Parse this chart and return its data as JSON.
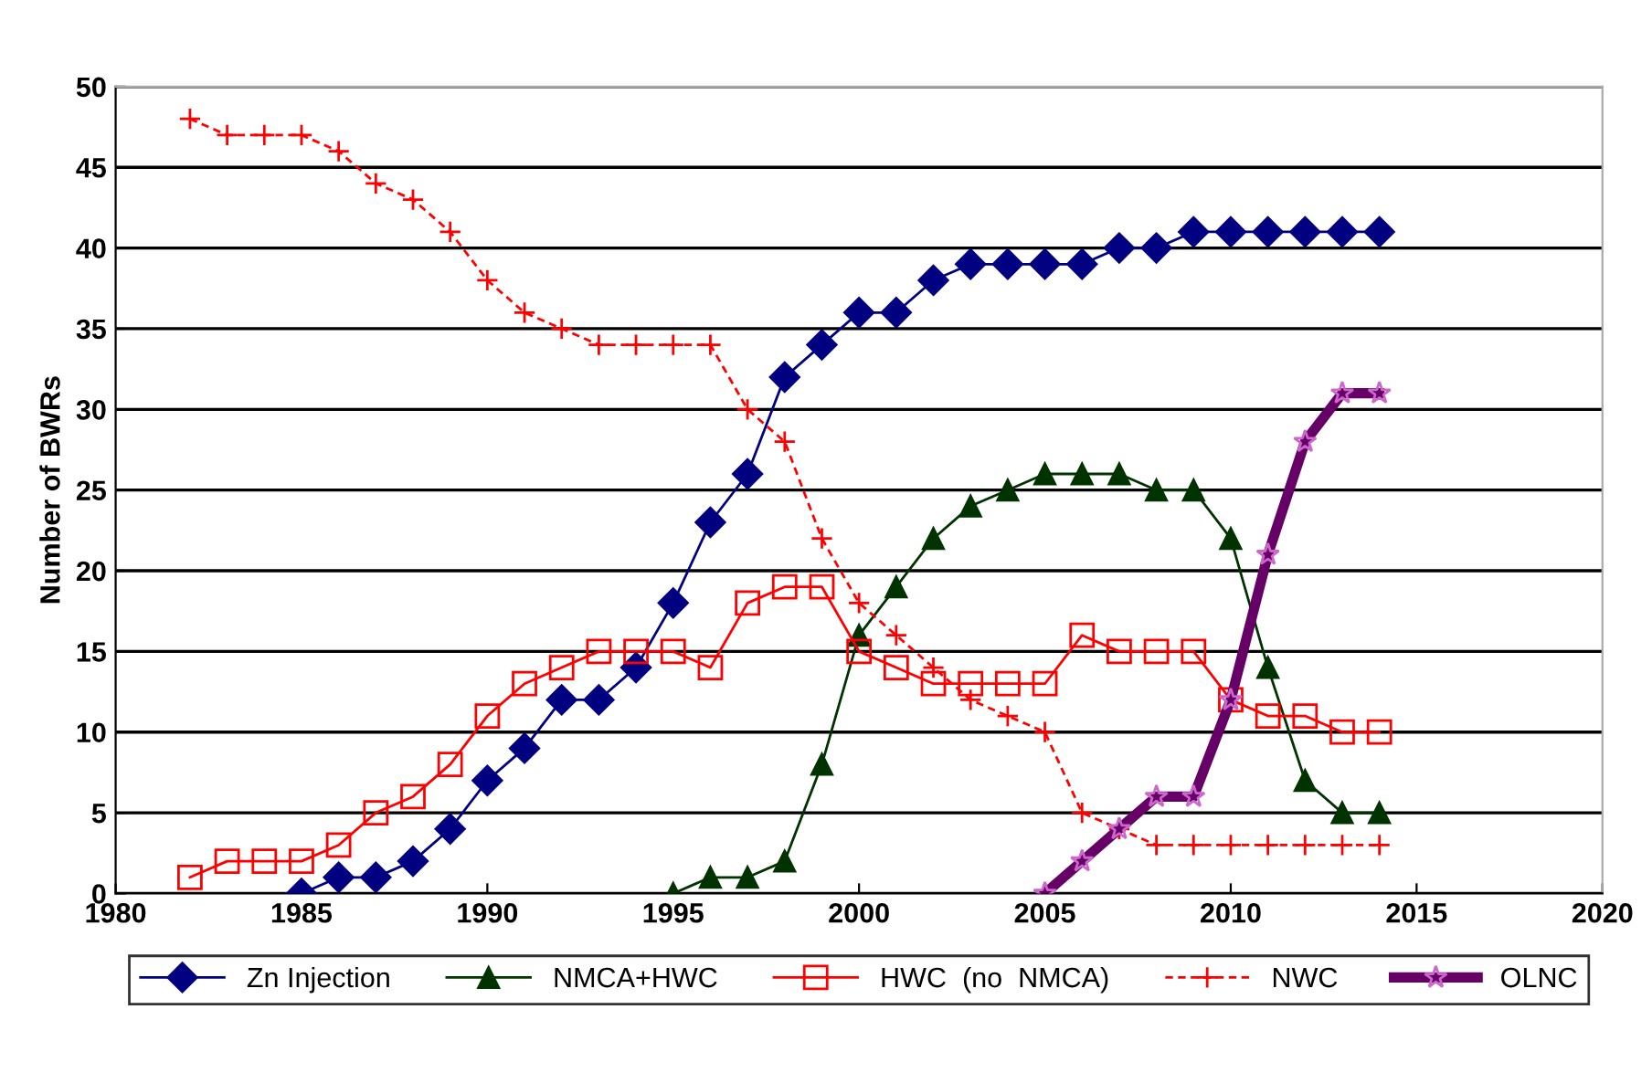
{
  "chart_data": {
    "type": "line",
    "ylabel": "Number of BWRs",
    "xlim": [
      1980,
      2020
    ],
    "xticks": [
      1980,
      1985,
      1990,
      1995,
      2000,
      2005,
      2010,
      2015,
      2020
    ],
    "ylim": [
      0,
      50
    ],
    "yticks": [
      0,
      5,
      10,
      15,
      20,
      25,
      30,
      35,
      40,
      45,
      50
    ],
    "grid": "y",
    "legend": "bottom",
    "series": [
      {
        "name": "Zn Injection",
        "color": "#000080",
        "marker": "diamond",
        "line_style": "solid",
        "x": [
          1985,
          1986,
          1987,
          1988,
          1989,
          1990,
          1991,
          1992,
          1993,
          1994,
          1995,
          1996,
          1997,
          1998,
          1999,
          2000,
          2001,
          2002,
          2003,
          2004,
          2005,
          2006,
          2007,
          2008,
          2009,
          2010,
          2011,
          2012,
          2013,
          2014
        ],
        "values": [
          0,
          1,
          1,
          2,
          4,
          7,
          9,
          12,
          12,
          14,
          18,
          23,
          26,
          32,
          34,
          36,
          36,
          38,
          39,
          39,
          39,
          39,
          40,
          40,
          41,
          41,
          41,
          41,
          41,
          41
        ]
      },
      {
        "name": "NMCA+HWC",
        "color": "#003300",
        "marker": "triangle",
        "line_style": "solid",
        "x": [
          1995,
          1996,
          1997,
          1998,
          1999,
          2000,
          2001,
          2002,
          2003,
          2004,
          2005,
          2006,
          2007,
          2008,
          2009,
          2010,
          2011,
          2012,
          2013,
          2014
        ],
        "values": [
          0,
          1,
          1,
          2,
          8,
          16,
          19,
          22,
          24,
          25,
          26,
          26,
          26,
          25,
          25,
          22,
          14,
          7,
          5,
          5
        ]
      },
      {
        "name": "HWC  (no  NMCA)",
        "color": "#ff0000",
        "marker": "square",
        "line_style": "solid",
        "x": [
          1982,
          1983,
          1984,
          1985,
          1986,
          1987,
          1988,
          1989,
          1990,
          1991,
          1992,
          1993,
          1994,
          1995,
          1996,
          1997,
          1998,
          1999,
          2000,
          2001,
          2002,
          2003,
          2004,
          2005,
          2006,
          2007,
          2008,
          2009,
          2010,
          2011,
          2012,
          2013,
          2014
        ],
        "values": [
          1,
          2,
          2,
          2,
          3,
          5,
          6,
          8,
          11,
          13,
          14,
          15,
          15,
          15,
          14,
          18,
          19,
          19,
          15,
          14,
          13,
          13,
          13,
          13,
          16,
          15,
          15,
          15,
          12,
          11,
          11,
          10,
          10
        ]
      },
      {
        "name": "NWC",
        "color": "#ff0000",
        "marker": "cross",
        "line_style": "dashed",
        "x": [
          1982,
          1983,
          1984,
          1985,
          1986,
          1987,
          1988,
          1989,
          1990,
          1991,
          1992,
          1993,
          1994,
          1995,
          1996,
          1997,
          1998,
          1999,
          2000,
          2001,
          2002,
          2003,
          2004,
          2005,
          2006,
          2007,
          2008,
          2009,
          2010,
          2011,
          2012,
          2013,
          2014
        ],
        "values": [
          48,
          47,
          47,
          47,
          46,
          44,
          43,
          41,
          38,
          36,
          35,
          34,
          34,
          34,
          34,
          30,
          28,
          22,
          18,
          16,
          14,
          12,
          11,
          10,
          5,
          4,
          3,
          3,
          3,
          3,
          3,
          3,
          3
        ]
      },
      {
        "name": "OLNC",
        "color": "#660066",
        "marker": "star",
        "line_style": "solid",
        "x": [
          2005,
          2006,
          2007,
          2008,
          2009,
          2010,
          2011,
          2012,
          2013,
          2014
        ],
        "values": [
          0,
          2,
          4,
          6,
          6,
          12,
          21,
          28,
          31,
          31
        ]
      }
    ]
  }
}
